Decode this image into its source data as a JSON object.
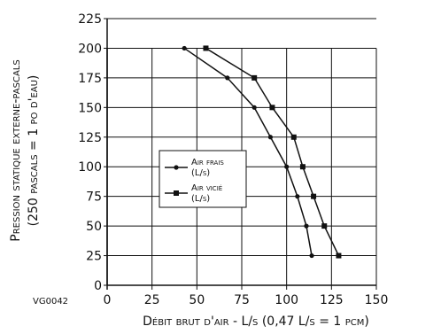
{
  "chart_data": {
    "type": "line",
    "xlabel": "Débit brut d'air - L/s (0,47 L/s = 1 pcm)",
    "ylabel_line1": "Pression statique externe-pascals",
    "ylabel_line2": "(250 pascals = 1 po d'eau)",
    "figure_code": "VG0042",
    "xlim": [
      0,
      150
    ],
    "ylim": [
      0,
      225
    ],
    "xticks": [
      0,
      25,
      50,
      75,
      100,
      125,
      150
    ],
    "yticks": [
      0,
      25,
      50,
      75,
      100,
      125,
      150,
      175,
      200,
      225
    ],
    "grid": true,
    "legend_position": "center-left",
    "series": [
      {
        "name_line1": "Air frais",
        "name_line2": "(L/s)",
        "marker": "circle",
        "x": [
          43,
          67,
          82,
          91,
          100,
          106,
          111,
          114
        ],
        "y": [
          200,
          175,
          150,
          125,
          100,
          75,
          50,
          25
        ]
      },
      {
        "name_line1": "Air vicié",
        "name_line2": "(L/s)",
        "marker": "square",
        "x": [
          55,
          82,
          92,
          104,
          109,
          115,
          121,
          129
        ],
        "y": [
          200,
          175,
          150,
          125,
          100,
          75,
          50,
          25
        ]
      }
    ],
    "colors": {
      "line": "#111111",
      "grid": "#111111"
    }
  }
}
